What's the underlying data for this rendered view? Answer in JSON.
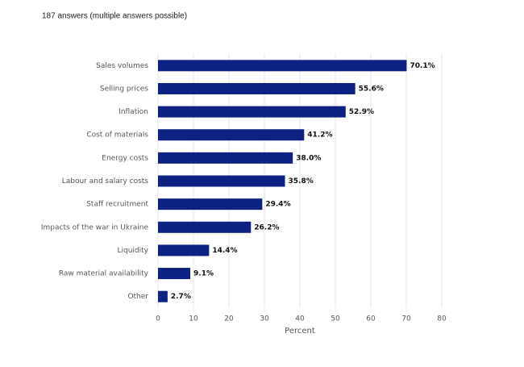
{
  "chart_data": {
    "type": "hbar",
    "subtitle": "187 answers (multiple answers possible)",
    "x_label": "Percent",
    "categories": [
      "Sales volumes",
      "Selling prices",
      "Inflation",
      "Cost of materials",
      "Energy costs",
      "Labour and salary costs",
      "Staff recruitment",
      "Impacts of the war in Ukraine",
      "Liquidity",
      "Raw material availability",
      "Other"
    ],
    "values": [
      70.1,
      55.6,
      52.9,
      41.2,
      38.0,
      35.8,
      29.4,
      26.2,
      14.4,
      9.1,
      2.7
    ],
    "value_labels": [
      "70.1%",
      "55.6%",
      "52.9%",
      "41.2%",
      "38.0%",
      "35.8%",
      "29.4%",
      "26.2%",
      "14.4%",
      "9.1%",
      "2.7%"
    ],
    "color": "#0e2283",
    "xlim": [
      0,
      80
    ],
    "xticks": [
      0,
      10,
      20,
      30,
      40,
      50,
      60,
      70,
      80
    ],
    "grid": true
  }
}
